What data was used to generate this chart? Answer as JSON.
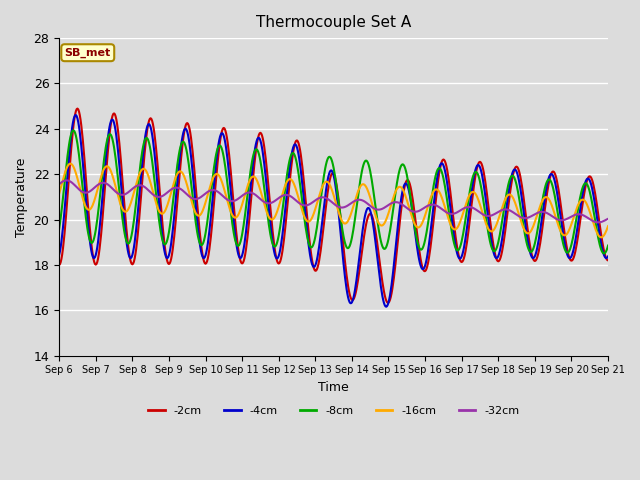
{
  "title": "Thermocouple Set A",
  "xlabel": "Time",
  "ylabel": "Temperature",
  "ylim": [
    14,
    28
  ],
  "x_tick_labels": [
    "Sep 6",
    "Sep 7",
    "Sep 8",
    "Sep 9",
    "Sep 10",
    "Sep 11",
    "Sep 12",
    "Sep 13",
    "Sep 14",
    "Sep 15",
    "Sep 16",
    "Sep 17",
    "Sep 18",
    "Sep 19",
    "Sep 20",
    "Sep 21"
  ],
  "bg_color": "#dcdcdc",
  "outer_bg": "#dcdcdc",
  "line_width": 1.5,
  "annotation_text": "SB_met",
  "series": [
    {
      "label": "-2cm",
      "color": "#cc0000"
    },
    {
      "label": "-4cm",
      "color": "#0000cc"
    },
    {
      "label": "-8cm",
      "color": "#00aa00"
    },
    {
      "label": "-16cm",
      "color": "#ffaa00"
    },
    {
      "label": "-32cm",
      "color": "#9933aa"
    }
  ]
}
